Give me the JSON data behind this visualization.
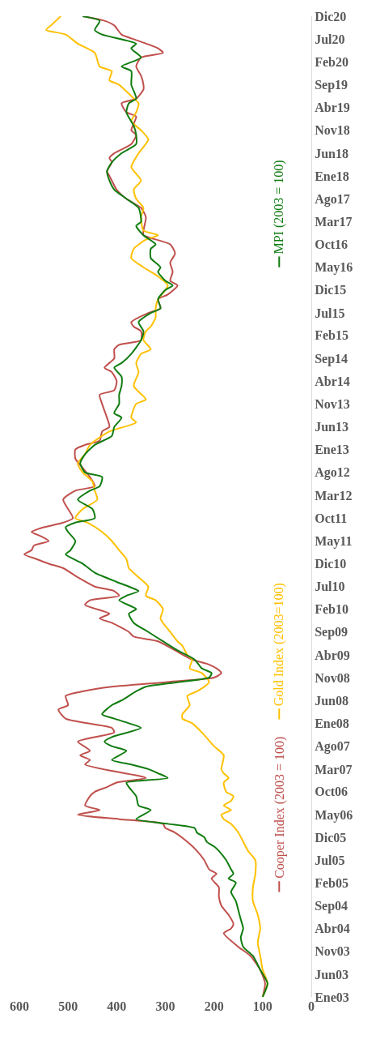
{
  "chart_data": {
    "type": "line",
    "orientation": "horizontal",
    "xlim": [
      600,
      0
    ],
    "xticks": [
      0,
      100,
      200,
      300,
      400,
      500,
      600
    ],
    "ylim": [
      "2003-01",
      "2020-12"
    ],
    "yticks": [
      {
        "value": "2003-01",
        "label": "Ene03"
      },
      {
        "value": "2003-06",
        "label": "Jun03"
      },
      {
        "value": "2003-11",
        "label": "Nov03"
      },
      {
        "value": "2004-04",
        "label": "Abr04"
      },
      {
        "value": "2004-09",
        "label": "Sep04"
      },
      {
        "value": "2005-02",
        "label": "Feb05"
      },
      {
        "value": "2005-07",
        "label": "Jul05"
      },
      {
        "value": "2005-12",
        "label": "Dic05"
      },
      {
        "value": "2006-05",
        "label": "May06"
      },
      {
        "value": "2006-10",
        "label": "Oct06"
      },
      {
        "value": "2007-03",
        "label": "Mar07"
      },
      {
        "value": "2007-08",
        "label": "Ago07"
      },
      {
        "value": "2008-01",
        "label": "Ene08"
      },
      {
        "value": "2008-06",
        "label": "Jun08"
      },
      {
        "value": "2008-11",
        "label": "Nov08"
      },
      {
        "value": "2009-04",
        "label": "Abr09"
      },
      {
        "value": "2009-09",
        "label": "Sep09"
      },
      {
        "value": "2010-02",
        "label": "Feb10"
      },
      {
        "value": "2010-07",
        "label": "Jul10"
      },
      {
        "value": "2010-12",
        "label": "Dic10"
      },
      {
        "value": "2011-05",
        "label": "May11"
      },
      {
        "value": "2011-10",
        "label": "Oct11"
      },
      {
        "value": "2012-03",
        "label": "Mar12"
      },
      {
        "value": "2012-08",
        "label": "Ago12"
      },
      {
        "value": "2013-01",
        "label": "Ene13"
      },
      {
        "value": "2013-06",
        "label": "Jun13"
      },
      {
        "value": "2013-11",
        "label": "Nov13"
      },
      {
        "value": "2014-04",
        "label": "Abr14"
      },
      {
        "value": "2014-09",
        "label": "Sep14"
      },
      {
        "value": "2015-02",
        "label": "Feb15"
      },
      {
        "value": "2015-07",
        "label": "Jul15"
      },
      {
        "value": "2015-12",
        "label": "Dic15"
      },
      {
        "value": "2016-05",
        "label": "May16"
      },
      {
        "value": "2016-10",
        "label": "Oct16"
      },
      {
        "value": "2017-03",
        "label": "Mar17"
      },
      {
        "value": "2017-08",
        "label": "Ago17"
      },
      {
        "value": "2018-01",
        "label": "Ene18"
      },
      {
        "value": "2018-06",
        "label": "Jun18"
      },
      {
        "value": "2018-11",
        "label": "Nov18"
      },
      {
        "value": "2019-04",
        "label": "Abr19"
      },
      {
        "value": "2019-09",
        "label": "Sep19"
      },
      {
        "value": "2020-02",
        "label": "Feb20"
      },
      {
        "value": "2020-07",
        "label": "Jul20"
      },
      {
        "value": "2020-12",
        "label": "Dic20"
      }
    ],
    "legend": "bottom",
    "series": [
      {
        "name": "Cooper Index (2003 = 100)",
        "color": "#c0504d",
        "x": [
          "2003-01",
          "2003-04",
          "2003-07",
          "2003-10",
          "2003-12",
          "2004-03",
          "2004-04",
          "2004-05",
          "2004-07",
          "2004-09",
          "2004-11",
          "2005-01",
          "2005-03",
          "2005-04",
          "2005-05",
          "2005-07",
          "2005-09",
          "2005-11",
          "2006-01",
          "2006-02",
          "2006-03",
          "2006-04",
          "2006-05",
          "2006-06",
          "2006-07",
          "2006-09",
          "2006-10",
          "2006-11",
          "2006-12",
          "2007-01",
          "2007-04",
          "2007-05",
          "2007-06",
          "2007-07",
          "2007-09",
          "2007-11",
          "2007-12",
          "2008-01",
          "2008-02",
          "2008-04",
          "2008-05",
          "2008-07",
          "2008-08",
          "2008-09",
          "2008-10",
          "2008-11",
          "2008-12",
          "2009-01",
          "2009-02",
          "2009-03",
          "2009-05",
          "2009-07",
          "2009-08",
          "2009-09",
          "2009-11",
          "2009-12",
          "2010-01",
          "2010-03",
          "2010-04",
          "2010-05",
          "2010-06",
          "2010-07",
          "2010-09",
          "2010-11",
          "2010-12",
          "2011-01",
          "2011-02",
          "2011-03",
          "2011-04",
          "2011-05",
          "2011-06",
          "2011-07",
          "2011-08",
          "2011-09",
          "2011-10",
          "2012-02",
          "2012-04",
          "2012-05",
          "2012-07",
          "2012-09",
          "2012-11",
          "2013-01",
          "2013-02",
          "2013-03",
          "2013-05",
          "2013-06",
          "2013-08",
          "2013-11",
          "2014-01",
          "2014-02",
          "2014-04",
          "2014-06",
          "2014-07",
          "2014-09",
          "2014-11",
          "2014-12",
          "2015-01",
          "2015-03",
          "2015-04",
          "2015-05",
          "2015-07",
          "2015-08",
          "2015-10",
          "2015-11",
          "2016-01",
          "2016-02",
          "2016-04",
          "2016-06",
          "2016-08",
          "2016-10",
          "2016-12",
          "2017-01",
          "2017-04",
          "2017-06",
          "2017-08",
          "2017-10",
          "2018-01",
          "2018-02",
          "2018-04",
          "2018-05",
          "2018-06",
          "2018-08",
          "2018-10",
          "2018-11",
          "2019-02",
          "2019-03",
          "2019-05",
          "2019-06",
          "2019-08",
          "2019-09",
          "2019-11",
          "2020-01",
          "2020-03",
          "2020-04",
          "2020-05",
          "2020-07",
          "2020-08",
          "2020-10",
          "2020-11",
          "2020-12"
        ],
        "values": [
          100,
          95,
          105,
          125,
          150,
          180,
          165,
          160,
          170,
          185,
          190,
          190,
          205,
          195,
          210,
          220,
          235,
          255,
          280,
          300,
          305,
          395,
          480,
          435,
          465,
          455,
          445,
          420,
          400,
          340,
          465,
          455,
          475,
          455,
          480,
          405,
          410,
          460,
          505,
          520,
          500,
          505,
          470,
          410,
          300,
          200,
          185,
          195,
          215,
          245,
          280,
          315,
          365,
          375,
          410,
          435,
          415,
          465,
          455,
          395,
          405,
          445,
          480,
          510,
          540,
          565,
          590,
          575,
          570,
          540,
          555,
          575,
          550,
          510,
          490,
          510,
          485,
          445,
          455,
          470,
          485,
          485,
          465,
          435,
          430,
          415,
          420,
          430,
          435,
          405,
          400,
          410,
          425,
          405,
          405,
          395,
          350,
          350,
          365,
          370,
          335,
          310,
          315,
          295,
          275,
          290,
          285,
          290,
          280,
          290,
          345,
          345,
          340,
          350,
          380,
          400,
          415,
          420,
          410,
          415,
          405,
          370,
          360,
          370,
          360,
          380,
          390,
          360,
          345,
          345,
          350,
          360,
          350,
          305,
          315,
          365,
          390,
          405,
          425,
          470
        ]
      },
      {
        "name": "Gold Index (2003=100)",
        "color": "#ffc000",
        "x": [
          "2003-01",
          "2003-04",
          "2003-07",
          "2003-10",
          "2004-01",
          "2004-04",
          "2004-07",
          "2004-10",
          "2005-01",
          "2005-04",
          "2005-07",
          "2005-09",
          "2005-11",
          "2006-01",
          "2006-03",
          "2006-04",
          "2006-05",
          "2006-06",
          "2006-07",
          "2006-08",
          "2006-09",
          "2006-10",
          "2006-12",
          "2007-01",
          "2007-02",
          "2007-03",
          "2007-06",
          "2007-08",
          "2007-11",
          "2008-01",
          "2008-02",
          "2008-03",
          "2008-05",
          "2008-07",
          "2008-08",
          "2008-10",
          "2008-12",
          "2009-01",
          "2009-03",
          "2009-04",
          "2009-06",
          "2009-07",
          "2009-09",
          "2009-11",
          "2009-12",
          "2010-02",
          "2010-04",
          "2010-05",
          "2010-07",
          "2010-09",
          "2010-11",
          "2011-01",
          "2011-03",
          "2011-05",
          "2011-07",
          "2011-09",
          "2011-10",
          "2011-12",
          "2012-02",
          "2012-04",
          "2012-06",
          "2012-08",
          "2012-10",
          "2012-12",
          "2013-02",
          "2013-05",
          "2013-07",
          "2013-08",
          "2013-11",
          "2013-12",
          "2014-03",
          "2014-06",
          "2014-08",
          "2014-10",
          "2014-11",
          "2015-01",
          "2015-03",
          "2015-04",
          "2015-06",
          "2015-08",
          "2015-10",
          "2015-12",
          "2016-01",
          "2016-03",
          "2016-05",
          "2016-07",
          "2016-09",
          "2016-11",
          "2016-12",
          "2017-01",
          "2017-04",
          "2017-06",
          "2017-08",
          "2017-10",
          "2017-12",
          "2018-03",
          "2018-06",
          "2018-09",
          "2018-11",
          "2019-01",
          "2019-03",
          "2019-05",
          "2019-06",
          "2019-09",
          "2019-10",
          "2019-12",
          "2020-01",
          "2020-04",
          "2020-06",
          "2020-08",
          "2020-09",
          "2020-10",
          "2020-11",
          "2020-12"
        ],
        "values": [
          100,
          90,
          100,
          105,
          110,
          105,
          110,
          120,
          120,
          115,
          115,
          130,
          140,
          150,
          165,
          180,
          185,
          165,
          180,
          165,
          160,
          175,
          180,
          170,
          180,
          185,
          180,
          200,
          225,
          245,
          265,
          265,
          250,
          255,
          235,
          210,
          225,
          250,
          245,
          255,
          265,
          275,
          290,
          305,
          310,
          305,
          320,
          340,
          335,
          355,
          375,
          380,
          395,
          410,
          430,
          460,
          485,
          470,
          440,
          445,
          450,
          470,
          480,
          465,
          455,
          415,
          360,
          370,
          360,
          340,
          365,
          355,
          360,
          350,
          330,
          345,
          340,
          330,
          320,
          320,
          315,
          300,
          295,
          315,
          345,
          370,
          365,
          340,
          315,
          345,
          350,
          345,
          360,
          365,
          350,
          370,
          355,
          335,
          350,
          370,
          360,
          355,
          365,
          395,
          415,
          410,
          435,
          445,
          480,
          505,
          545,
          535,
          525,
          515
        ]
      },
      {
        "name": "MPI (2003 = 100)",
        "color": "#107c10",
        "x": [
          "2003-01",
          "2003-04",
          "2003-07",
          "2003-10",
          "2003-12",
          "2004-02",
          "2004-04",
          "2004-06",
          "2004-08",
          "2004-10",
          "2004-12",
          "2005-02",
          "2005-03",
          "2005-04",
          "2005-05",
          "2005-07",
          "2005-09",
          "2005-10",
          "2005-11",
          "2005-12",
          "2006-01",
          "2006-02",
          "2006-03",
          "2006-04",
          "2006-06",
          "2006-07",
          "2006-09",
          "2006-11",
          "2006-12",
          "2007-01",
          "2007-02",
          "2007-03",
          "2007-04",
          "2007-05",
          "2007-07",
          "2007-08",
          "2007-09",
          "2007-10",
          "2007-12",
          "2008-01",
          "2008-02",
          "2008-03",
          "2008-05",
          "2008-06",
          "2008-08",
          "2008-09",
          "2008-10",
          "2008-11",
          "2008-12",
          "2009-01",
          "2009-03",
          "2009-05",
          "2009-07",
          "2009-09",
          "2009-11",
          "2010-01",
          "2010-02",
          "2010-04",
          "2010-05",
          "2010-06",
          "2010-07",
          "2010-08",
          "2010-10",
          "2010-12",
          "2011-02",
          "2011-03",
          "2011-05",
          "2011-07",
          "2011-08",
          "2011-09",
          "2011-10",
          "2011-12",
          "2012-02",
          "2012-04",
          "2012-05",
          "2012-07",
          "2012-08",
          "2012-10",
          "2012-12",
          "2013-02",
          "2013-04",
          "2013-06",
          "2013-08",
          "2013-09",
          "2013-11",
          "2014-01",
          "2014-03",
          "2014-05",
          "2014-07",
          "2014-08",
          "2014-10",
          "2015-01",
          "2015-03",
          "2015-05",
          "2015-07",
          "2015-08",
          "2015-10",
          "2015-12",
          "2016-01",
          "2016-02",
          "2016-04",
          "2016-05",
          "2016-07",
          "2016-09",
          "2016-10",
          "2016-12",
          "2017-02",
          "2017-03",
          "2017-06",
          "2017-08",
          "2017-10",
          "2017-12",
          "2018-02",
          "2018-04",
          "2018-06",
          "2018-08",
          "2018-10",
          "2018-12",
          "2019-03",
          "2019-05",
          "2019-06",
          "2019-09",
          "2019-12",
          "2020-01",
          "2020-03",
          "2020-05",
          "2020-06",
          "2020-08",
          "2020-09",
          "2020-11",
          "2020-12"
        ],
        "values": [
          100,
          90,
          105,
          120,
          140,
          145,
          140,
          145,
          150,
          155,
          165,
          155,
          170,
          160,
          165,
          175,
          190,
          200,
          215,
          220,
          235,
          240,
          295,
          360,
          330,
          355,
          360,
          375,
          380,
          295,
          315,
          335,
          370,
          410,
          380,
          410,
          425,
          410,
          350,
          375,
          405,
          430,
          410,
          390,
          360,
          340,
          275,
          210,
          205,
          225,
          240,
          275,
          305,
          335,
          365,
          375,
          360,
          395,
          380,
          355,
          375,
          400,
          445,
          470,
          505,
          495,
          485,
          500,
          505,
          485,
          445,
          450,
          480,
          455,
          435,
          430,
          465,
          475,
          465,
          445,
          410,
          405,
          390,
          405,
          395,
          395,
          390,
          390,
          405,
          390,
          370,
          350,
          345,
          355,
          330,
          310,
          315,
          300,
          285,
          300,
          315,
          310,
          330,
          330,
          320,
          345,
          360,
          350,
          355,
          380,
          405,
          415,
          420,
          410,
          390,
          360,
          360,
          365,
          380,
          375,
          360,
          370,
          370,
          390,
          350,
          370,
          360,
          430,
          445,
          435,
          470
        ]
      }
    ]
  }
}
